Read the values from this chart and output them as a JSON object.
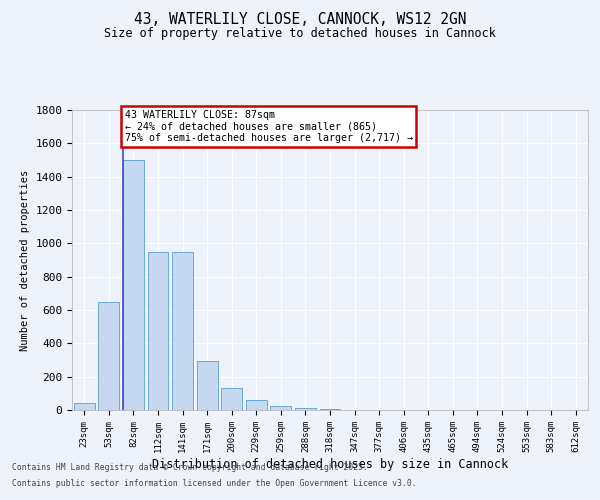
{
  "title1": "43, WATERLILY CLOSE, CANNOCK, WS12 2GN",
  "title2": "Size of property relative to detached houses in Cannock",
  "xlabel": "Distribution of detached houses by size in Cannock",
  "ylabel": "Number of detached properties",
  "categories": [
    "23sqm",
    "53sqm",
    "82sqm",
    "112sqm",
    "141sqm",
    "171sqm",
    "200sqm",
    "229sqm",
    "259sqm",
    "288sqm",
    "318sqm",
    "347sqm",
    "377sqm",
    "406sqm",
    "435sqm",
    "465sqm",
    "494sqm",
    "524sqm",
    "553sqm",
    "583sqm",
    "612sqm"
  ],
  "values": [
    42,
    650,
    1500,
    950,
    950,
    295,
    130,
    60,
    25,
    10,
    5,
    0,
    0,
    0,
    0,
    0,
    0,
    0,
    0,
    0,
    0
  ],
  "bar_color": "#c5d8f0",
  "bar_edge_color": "#6aaad4",
  "vline_color": "#4444cc",
  "annotation_text": "43 WATERLILY CLOSE: 87sqm\n← 24% of detached houses are smaller (865)\n75% of semi-detached houses are larger (2,717) →",
  "annotation_box_facecolor": "#ffffff",
  "annotation_box_edgecolor": "#cc0000",
  "ylim": [
    0,
    1800
  ],
  "yticks": [
    0,
    200,
    400,
    600,
    800,
    1000,
    1200,
    1400,
    1600,
    1800
  ],
  "bg_color": "#eef2fa",
  "grid_color": "#ffffff",
  "footer1": "Contains HM Land Registry data © Crown copyright and database right 2025.",
  "footer2": "Contains public sector information licensed under the Open Government Licence v3.0."
}
